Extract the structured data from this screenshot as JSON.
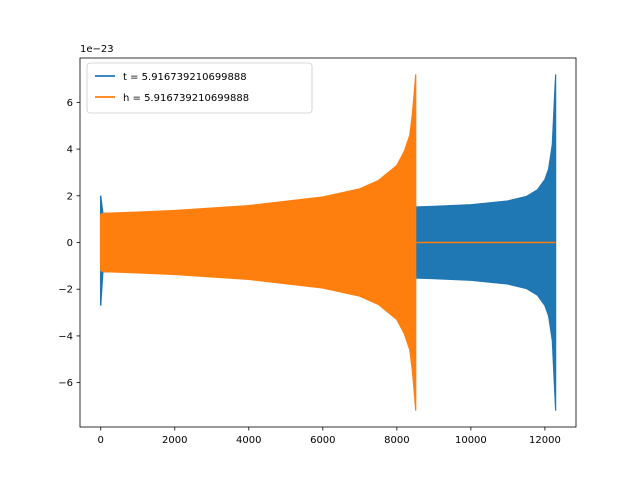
{
  "chart_data": {
    "type": "line",
    "title": "",
    "xlabel": "",
    "ylabel": "",
    "y_offset_label": "1e−23",
    "xlim": [
      -560,
      12840
    ],
    "ylim": [
      -7.9,
      7.9
    ],
    "x_ticks": [
      0,
      2000,
      4000,
      6000,
      8000,
      10000,
      12000
    ],
    "x_tick_labels": [
      "0",
      "2000",
      "4000",
      "6000",
      "8000",
      "10000",
      "12000"
    ],
    "y_ticks": [
      -6,
      -4,
      -2,
      0,
      2,
      4,
      6
    ],
    "y_tick_labels": [
      "−6",
      "−4",
      "−2",
      "0",
      "2",
      "4",
      "6"
    ],
    "grid": false,
    "legend_position": "top-left",
    "series": [
      {
        "name": "t = 5.916739210699888",
        "color": "#1f77b4",
        "envelope": {
          "x": [
            0,
            60,
            1000,
            2000,
            4000,
            6000,
            8000,
            8500,
            9000,
            10000,
            11000,
            11500,
            11800,
            12000,
            12100,
            12200,
            12250,
            12290
          ],
          "upper": [
            2.0,
            1.25,
            1.27,
            1.3,
            1.36,
            1.43,
            1.5,
            1.52,
            1.55,
            1.62,
            1.78,
            1.97,
            2.26,
            2.7,
            3.15,
            4.2,
            5.9,
            7.2
          ],
          "lower": [
            -2.7,
            -1.25,
            -1.27,
            -1.3,
            -1.36,
            -1.43,
            -1.5,
            -1.52,
            -1.55,
            -1.62,
            -1.78,
            -1.97,
            -2.26,
            -2.7,
            -3.15,
            -4.2,
            -5.9,
            -7.2
          ]
        },
        "flat_after": {
          "x_start": null,
          "x_end": null,
          "value": 0
        }
      },
      {
        "name": "h = 5.916739210699888",
        "color": "#ff7f0e",
        "envelope": {
          "x": [
            0,
            60,
            1000,
            2000,
            4000,
            6000,
            7000,
            7500,
            8000,
            8200,
            8350,
            8420,
            8480,
            8510
          ],
          "upper": [
            1.2,
            1.25,
            1.3,
            1.37,
            1.58,
            1.95,
            2.3,
            2.65,
            3.3,
            3.9,
            4.6,
            5.5,
            6.6,
            7.2
          ],
          "lower": [
            -1.2,
            -1.25,
            -1.3,
            -1.37,
            -1.58,
            -1.95,
            -2.3,
            -2.65,
            -3.3,
            -3.9,
            -4.6,
            -5.5,
            -6.6,
            -7.2
          ]
        },
        "flat_after": {
          "x_start": 8510,
          "x_end": 12290,
          "value": 0
        }
      }
    ]
  }
}
